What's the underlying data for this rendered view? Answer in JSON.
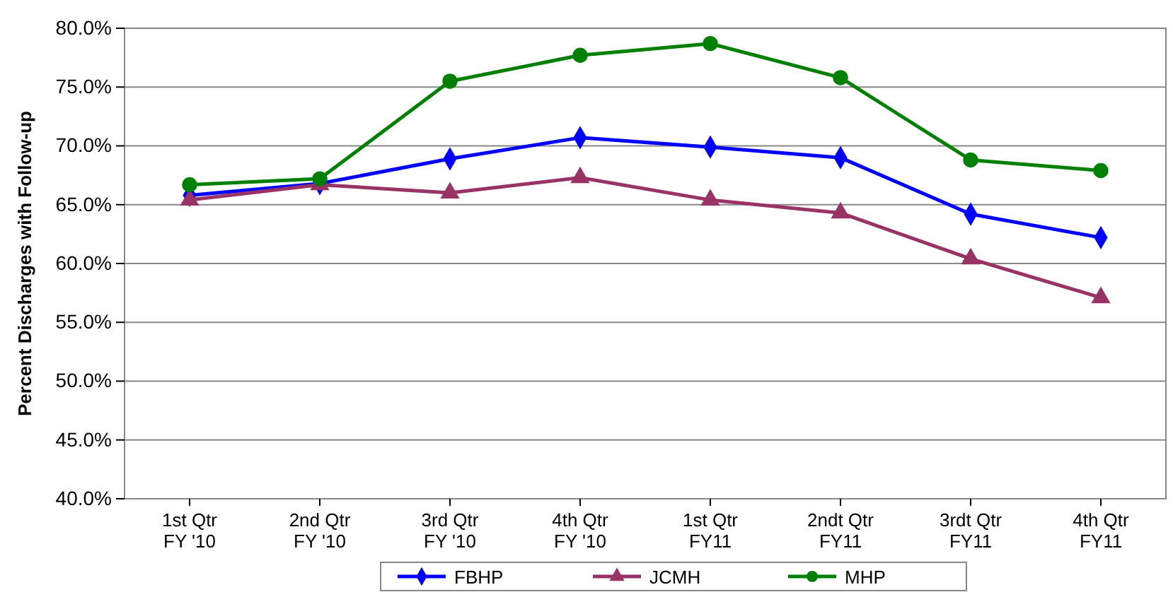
{
  "chart_data": {
    "type": "line",
    "ylabel": "Percent Discharges with Follow-up",
    "categories": [
      "1st Qtr FY '10",
      "2nd Qtr FY '10",
      "3rd Qtr FY '10",
      "4th Qtr FY '10",
      "1st Qtr FY11",
      "2ndt Qtr FY11",
      "3rdt Qtr FY11",
      "4th Qtr FY11"
    ],
    "series": [
      {
        "name": "FBHP",
        "color": "#0000ff",
        "marker": "diamond",
        "values": [
          65.8,
          66.8,
          68.9,
          70.7,
          69.9,
          69.0,
          64.2,
          62.2
        ]
      },
      {
        "name": "JCMH",
        "color": "#993366",
        "marker": "triangle",
        "values": [
          65.4,
          66.7,
          66.0,
          67.3,
          65.4,
          64.3,
          60.4,
          57.1
        ]
      },
      {
        "name": "MHP",
        "color": "#008000",
        "marker": "circle",
        "values": [
          66.7,
          67.2,
          75.5,
          77.7,
          78.7,
          75.8,
          68.8,
          67.9
        ]
      }
    ],
    "ylim": [
      40,
      80
    ],
    "yticks": [
      {
        "value": 40,
        "label": "40.0%"
      },
      {
        "value": 45,
        "label": "45.0%"
      },
      {
        "value": 50,
        "label": "50.0%"
      },
      {
        "value": 55,
        "label": "55.0%"
      },
      {
        "value": 60,
        "label": "60.0%"
      },
      {
        "value": 65,
        "label": "65.0%"
      },
      {
        "value": 70,
        "label": "70.0%"
      },
      {
        "value": 75,
        "label": "75.0%"
      },
      {
        "value": 80,
        "label": "80.0%"
      }
    ],
    "grid": "y",
    "legend": "bottom",
    "line_style": "solid"
  }
}
